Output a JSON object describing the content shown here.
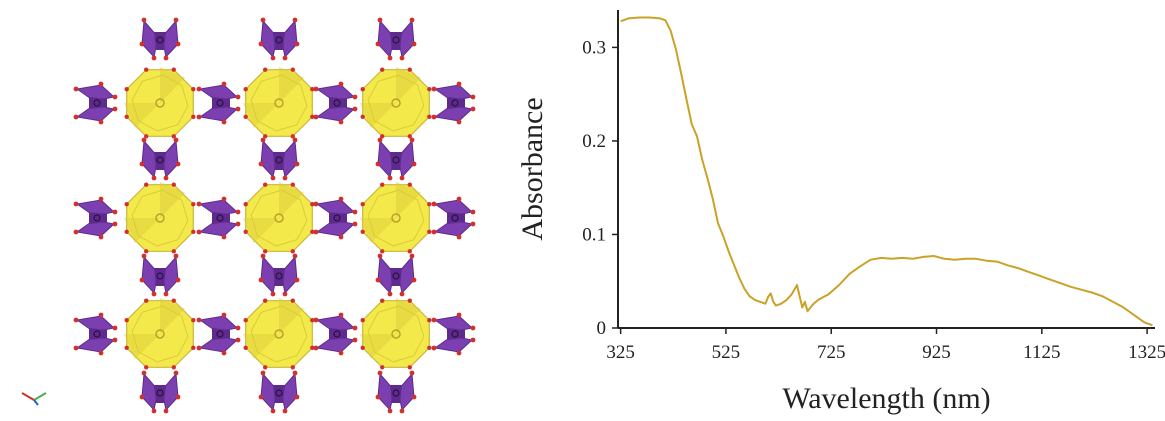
{
  "structure_figure": {
    "grid_rows": 3,
    "grid_cols": 3,
    "colors": {
      "polyhedron_fill": "#f4e94a",
      "polyhedron_shade": "#d9cc3a",
      "polyhedron_edge": "#c8b83a",
      "tetrahedron_fill": "#7b3fb0",
      "tetrahedron_dark": "#5e2a8e",
      "oxygen": "#d0312d",
      "axis_x": "#d0312d",
      "axis_y": "#4caf50",
      "axis_z": "#1e63c8"
    }
  },
  "chart_data": {
    "type": "line",
    "title": "",
    "xlabel": "Wavelength (nm)",
    "ylabel": "Absorbance",
    "xlim": [
      320,
      1340
    ],
    "ylim": [
      0,
      0.34
    ],
    "x_ticks": [
      325,
      525,
      725,
      925,
      1125,
      1325
    ],
    "y_ticks": [
      0,
      0.1,
      0.2,
      0.3
    ],
    "y_tick_labels": [
      "0",
      "0.1",
      "0.2",
      "0.3"
    ],
    "grid": false,
    "legend": "none",
    "line_color": "#c9a227",
    "series": [
      {
        "x": [
          325,
          340,
          360,
          380,
          400,
          410,
          420,
          430,
          440,
          450,
          460,
          470,
          480,
          490,
          500,
          510,
          520,
          530,
          540,
          550,
          560,
          570,
          580,
          590,
          600,
          605,
          610,
          615,
          620,
          630,
          640,
          650,
          660,
          665,
          670,
          675,
          680,
          690,
          700,
          720,
          740,
          760,
          780,
          800,
          820,
          840,
          860,
          880,
          900,
          920,
          940,
          960,
          980,
          1000,
          1020,
          1040,
          1060,
          1080,
          1100,
          1120,
          1140,
          1160,
          1180,
          1200,
          1220,
          1240,
          1260,
          1280,
          1300,
          1320,
          1335
        ],
        "values": [
          0.328,
          0.331,
          0.332,
          0.332,
          0.331,
          0.329,
          0.318,
          0.298,
          0.272,
          0.245,
          0.218,
          0.205,
          0.18,
          0.16,
          0.138,
          0.112,
          0.098,
          0.082,
          0.068,
          0.054,
          0.042,
          0.034,
          0.03,
          0.028,
          0.026,
          0.033,
          0.037,
          0.028,
          0.024,
          0.026,
          0.03,
          0.036,
          0.046,
          0.034,
          0.022,
          0.028,
          0.018,
          0.025,
          0.03,
          0.036,
          0.046,
          0.058,
          0.066,
          0.073,
          0.075,
          0.074,
          0.075,
          0.074,
          0.076,
          0.077,
          0.074,
          0.073,
          0.074,
          0.074,
          0.072,
          0.071,
          0.067,
          0.064,
          0.06,
          0.056,
          0.052,
          0.048,
          0.044,
          0.041,
          0.038,
          0.034,
          0.028,
          0.022,
          0.014,
          0.006,
          0.003
        ]
      }
    ]
  }
}
